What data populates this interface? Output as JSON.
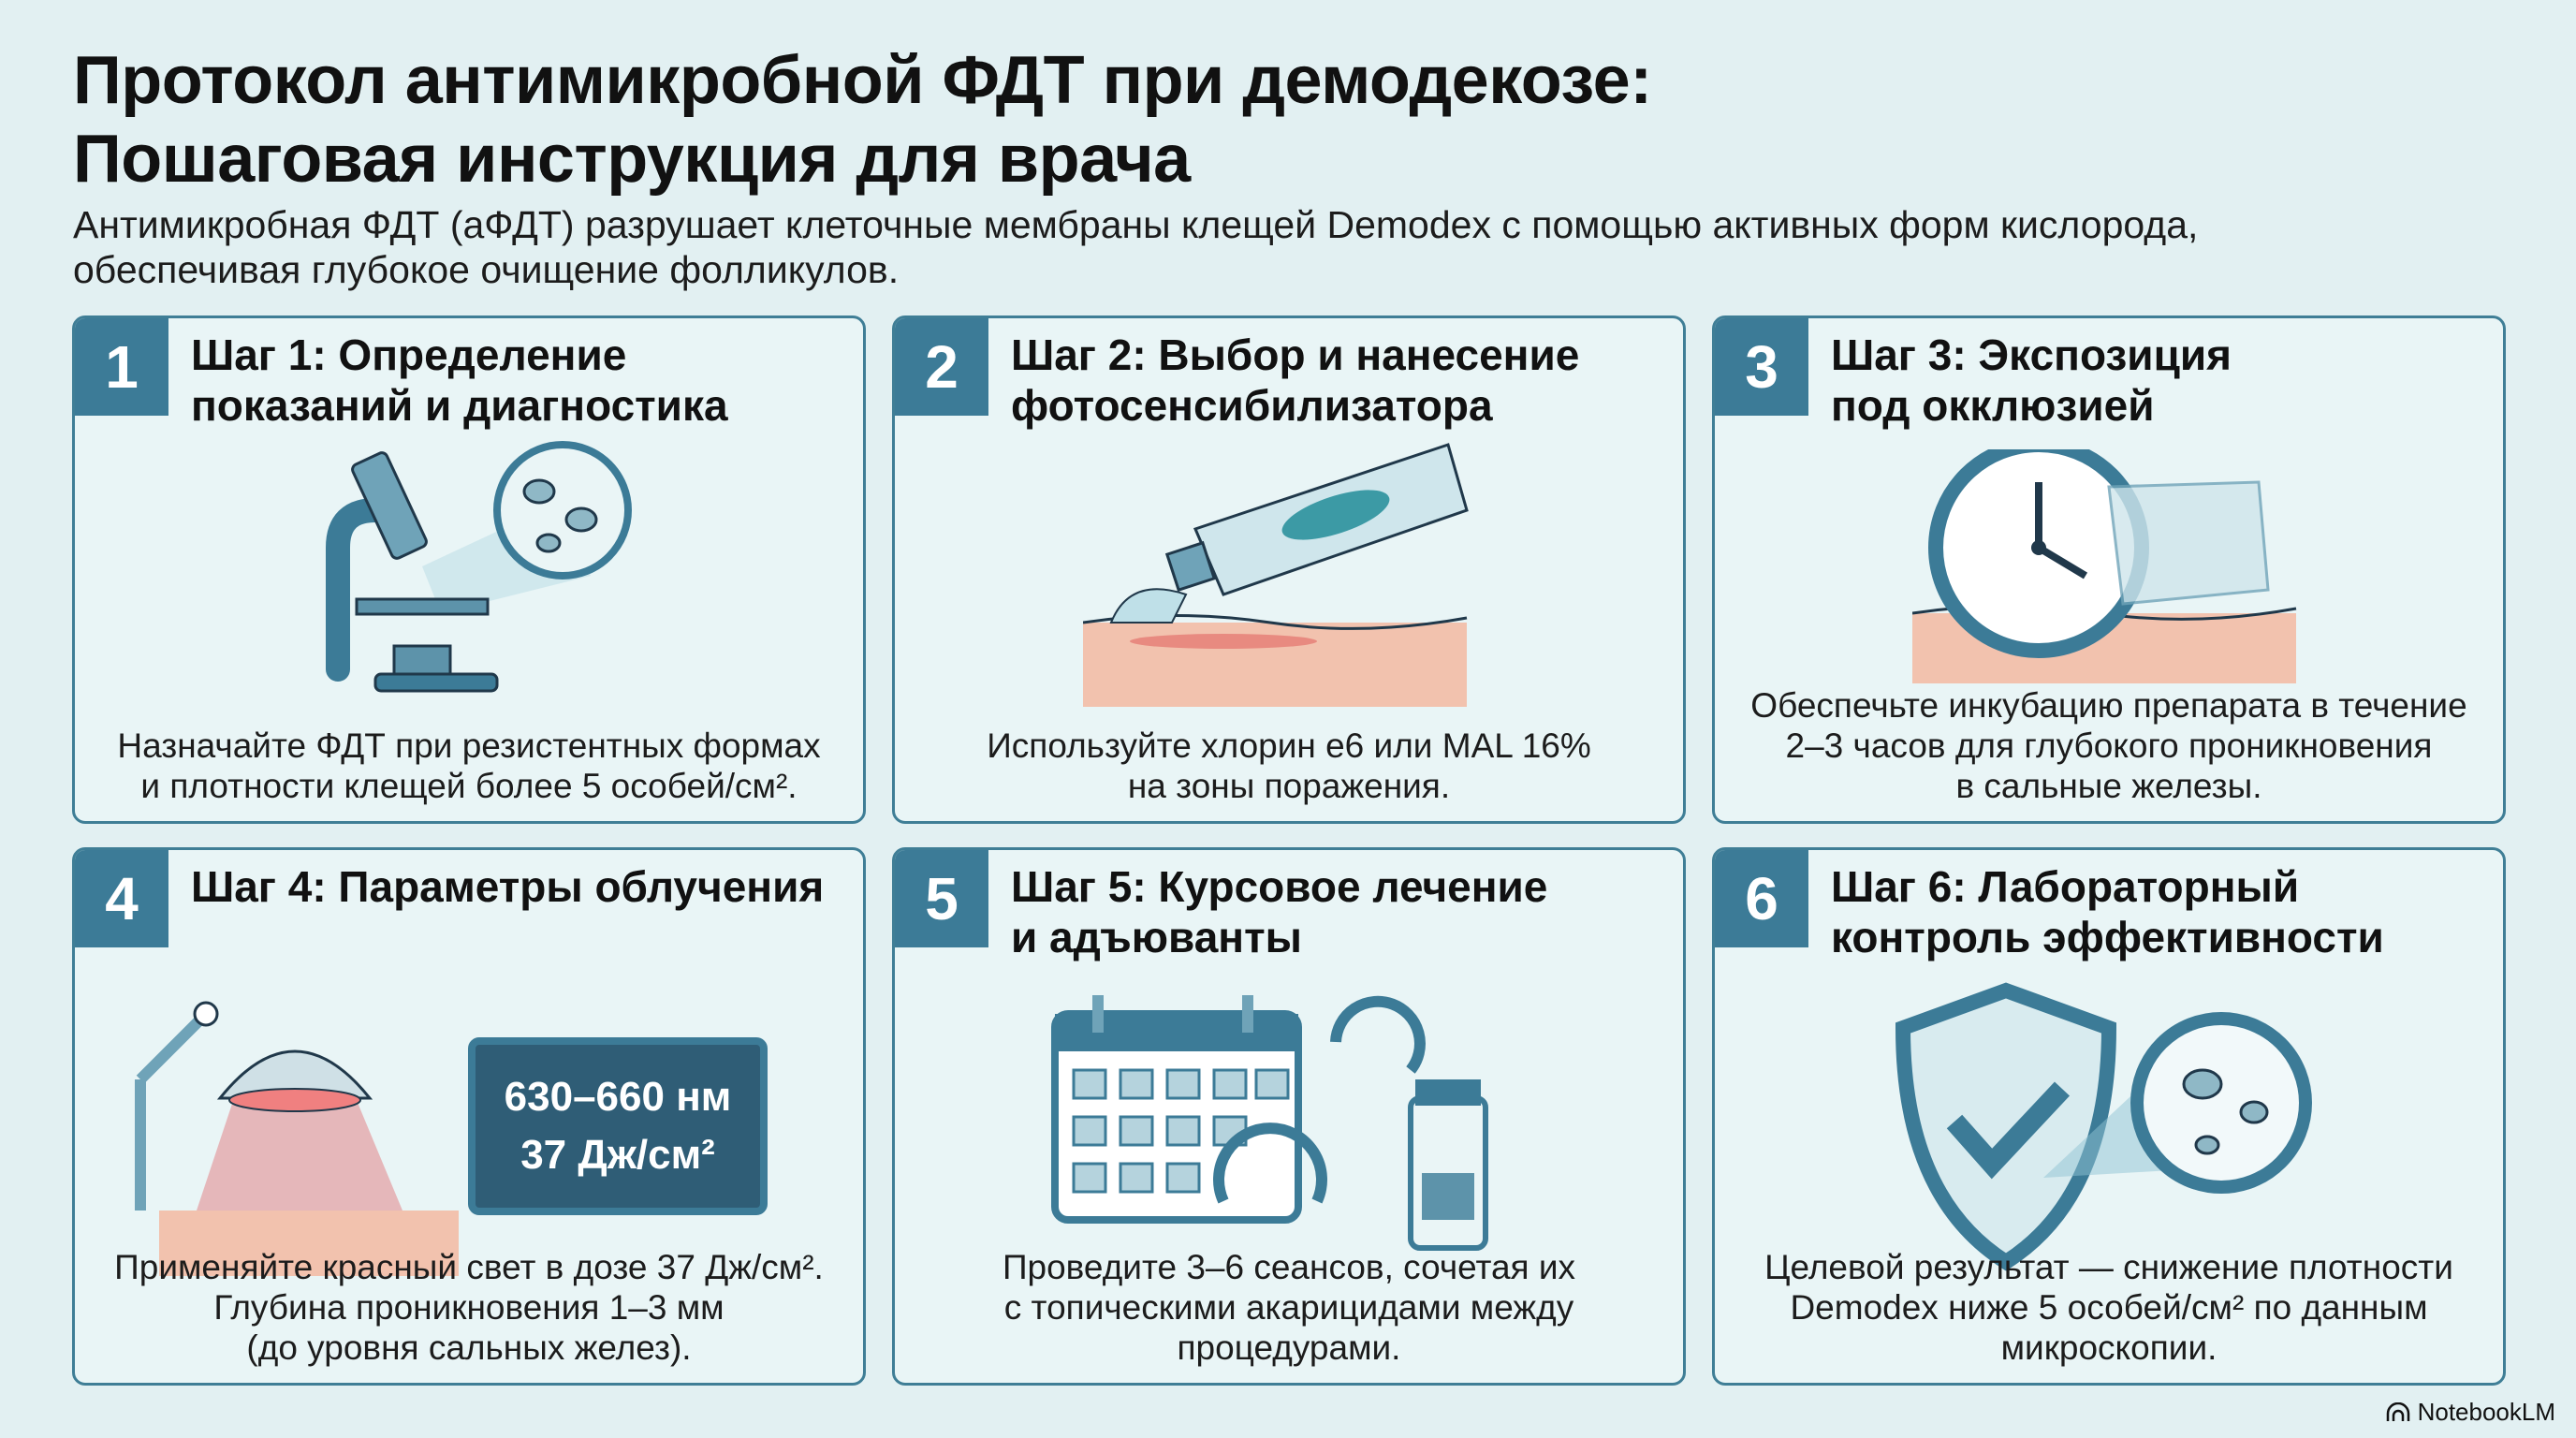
{
  "title": {
    "line1": "Протокол антимикробной ФДТ при демодекозе:",
    "line2": "Пошаговая инструкция для врача"
  },
  "subtitle": {
    "line1": "Антимикробная ФДТ (аФДТ) разрушает клеточные мембраны клещей Demodex с помощью активных форм кислорода,",
    "line2": "обеспечивая глубокое очищение фолликулов."
  },
  "colors": {
    "accent": "#3c7b97",
    "background": "#e2f0f2",
    "skin": "#f2c2ae",
    "red_light": "#e0464a"
  },
  "steps": [
    {
      "number": "1",
      "heading": [
        "Шаг 1: Определение",
        "показаний и диагностика"
      ],
      "icon": "microscope-icon",
      "body": [
        "Назначайте ФДТ при резистентных формах",
        "и плотности клещей более 5 особей/см²."
      ]
    },
    {
      "number": "2",
      "heading": [
        "Шаг 2: Выбор и нанесение",
        "фотосенсибилизатора"
      ],
      "icon": "cream-tube-icon",
      "body": [
        "Используйте хлорин е6 или MAL 16%",
        "на зоны поражения."
      ]
    },
    {
      "number": "3",
      "heading": [
        "Шаг 3: Экспозиция",
        "под окклюзией"
      ],
      "icon": "clock-icon",
      "body": [
        "Обеспечьте инкубацию препарата в течение",
        "2–3 часов для глубокого проникновения",
        "в сальные железы."
      ]
    },
    {
      "number": "4",
      "heading": [
        "Шаг 4: Параметры облучения",
        ""
      ],
      "icon": "lamp-icon",
      "display": [
        "630–660 нм",
        "37 Дж/см²"
      ],
      "body": [
        "Применяйте красный свет в дозе 37 Дж/см².",
        "Глубина проникновения 1–3 мм",
        "(до уровня сальных желез)."
      ]
    },
    {
      "number": "5",
      "heading": [
        "Шаг 5: Курсовое лечение",
        "и адъюванты"
      ],
      "icon": "calendar-icon",
      "body": [
        "Проведите 3–6 сеансов, сочетая их",
        "с топическими акарицидами между",
        "процедурами."
      ]
    },
    {
      "number": "6",
      "heading": [
        "Шаг 6: Лабораторный",
        "контроль эффективности"
      ],
      "icon": "shield-check-icon",
      "body": [
        "Целевой результат — снижение плотности",
        "Demodex ниже 5 особей/см² по данным",
        "микроскопии."
      ]
    }
  ],
  "brand": "NotebookLM"
}
